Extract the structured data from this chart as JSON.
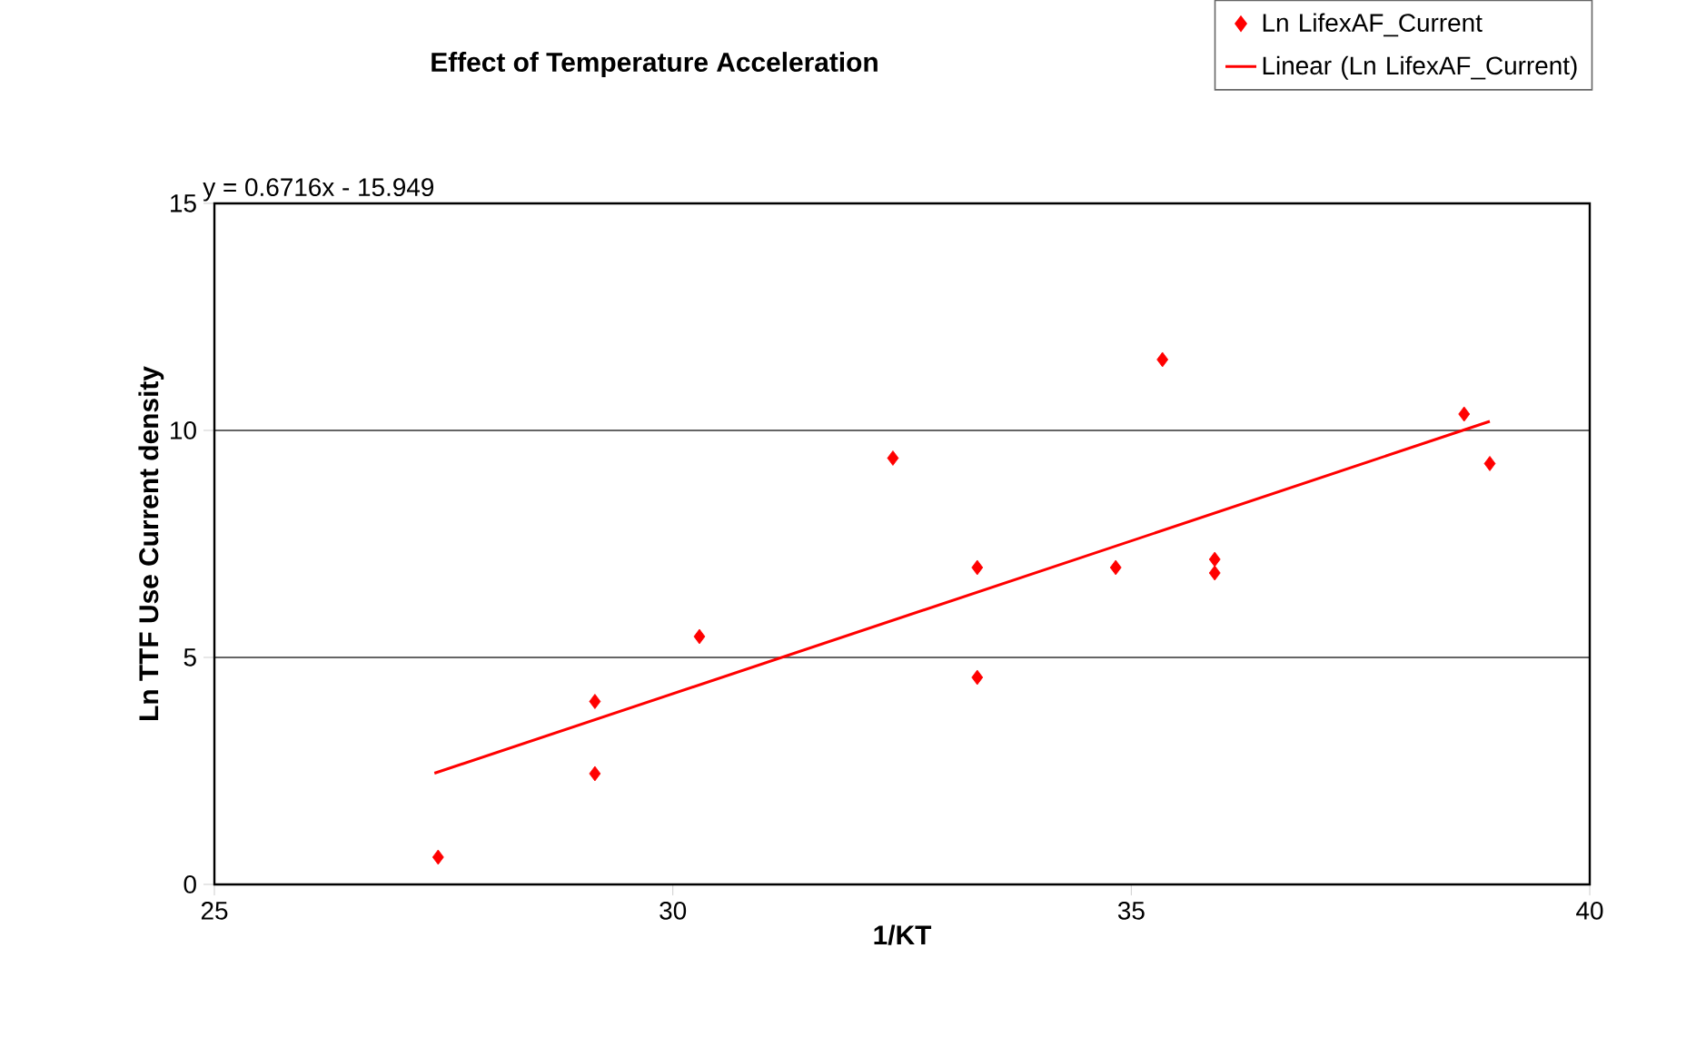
{
  "chart_data": {
    "type": "scatter",
    "title": "Effect of Temperature Acceleration",
    "xlabel": "1/KT",
    "ylabel": "Ln TTF Use Current density",
    "annotations": [
      "y = 0.6716x - 15.949"
    ],
    "series": [
      {
        "name": "Ln LifexAF_Current",
        "color": "#ff0000",
        "marker": "diamond",
        "x": [
          27.44,
          29.15,
          29.15,
          30.29,
          32.4,
          33.32,
          33.32,
          34.83,
          35.34,
          35.91,
          35.91,
          38.63,
          38.91
        ],
        "values": [
          0.6,
          4.03,
          2.44,
          5.46,
          9.39,
          6.98,
          4.56,
          6.98,
          11.56,
          7.16,
          6.86,
          10.36,
          9.27
        ]
      },
      {
        "name": "Linear (Ln LifexAF_Current)",
        "type": "line",
        "color": "#ff0000",
        "marker": "none",
        "x": [
          27.4,
          38.91
        ],
        "values": [
          2.45,
          10.2
        ]
      }
    ],
    "xlim": [
      25,
      40
    ],
    "ylim": [
      0,
      15
    ],
    "xticks": [
      25,
      30,
      35,
      40
    ],
    "yticks": [
      0,
      5,
      10,
      15
    ],
    "grid": "y",
    "legend": "top right"
  }
}
